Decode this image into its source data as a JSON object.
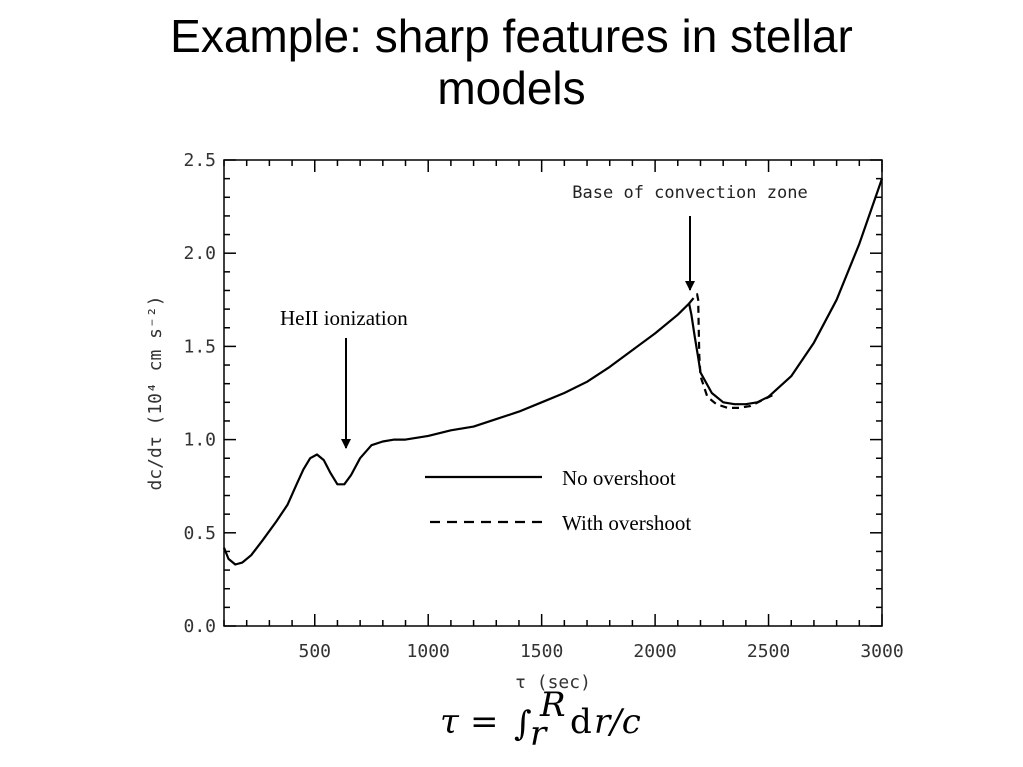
{
  "slide": {
    "title_line1": "Example: sharp features in stellar",
    "title_line2": "models"
  },
  "formula": {
    "tau": "τ",
    "equals": "=",
    "integral": "∫",
    "upper": "R",
    "lower": "r",
    "integrand_d": "d",
    "integrand_rest": "r/c"
  },
  "chart_data": {
    "type": "line",
    "title": "",
    "xlabel": "τ (sec)",
    "ylabel": "dc/dτ (10⁴ cm s⁻²)",
    "xlim": [
      100,
      3000
    ],
    "ylim": [
      0,
      2.5
    ],
    "xticks": [
      500,
      1000,
      1500,
      2000,
      2500,
      3000
    ],
    "xtick_labels": [
      "500",
      "1000",
      "1500",
      "2000",
      "2500",
      "3000"
    ],
    "yticks": [
      0.0,
      0.5,
      1.0,
      1.5,
      2.0,
      2.5
    ],
    "ytick_labels": [
      "0.0",
      "0.5",
      "1.0",
      "1.5",
      "2.0",
      "2.5"
    ],
    "grid": false,
    "legend_position": "center-right",
    "series": [
      {
        "name": "No overshoot",
        "style": "solid",
        "color": "#000000",
        "x": [
          100,
          120,
          150,
          180,
          220,
          270,
          330,
          380,
          420,
          450,
          480,
          510,
          540,
          570,
          600,
          630,
          660,
          700,
          750,
          800,
          850,
          900,
          1000,
          1100,
          1200,
          1300,
          1400,
          1500,
          1600,
          1700,
          1800,
          1900,
          2000,
          2100,
          2150,
          2160,
          2175,
          2190,
          2200,
          2250,
          2300,
          2350,
          2400,
          2450,
          2500,
          2600,
          2700,
          2800,
          2900,
          3000
        ],
        "y": [
          0.42,
          0.36,
          0.33,
          0.34,
          0.38,
          0.46,
          0.56,
          0.65,
          0.76,
          0.84,
          0.9,
          0.92,
          0.89,
          0.82,
          0.76,
          0.76,
          0.81,
          0.9,
          0.97,
          0.99,
          1.0,
          1.0,
          1.02,
          1.05,
          1.07,
          1.11,
          1.15,
          1.2,
          1.25,
          1.31,
          1.39,
          1.48,
          1.57,
          1.67,
          1.73,
          1.67,
          1.55,
          1.44,
          1.36,
          1.25,
          1.2,
          1.19,
          1.19,
          1.2,
          1.23,
          1.34,
          1.52,
          1.75,
          2.05,
          2.4
        ]
      },
      {
        "name": "With overshoot",
        "style": "dashed",
        "color": "#000000",
        "x": [
          2150,
          2170,
          2185,
          2190,
          2192,
          2195,
          2200,
          2230,
          2270,
          2320,
          2370,
          2420,
          2470,
          2520
        ],
        "y": [
          1.73,
          1.76,
          1.78,
          1.75,
          1.6,
          1.45,
          1.34,
          1.23,
          1.19,
          1.17,
          1.17,
          1.18,
          1.21,
          1.24
        ]
      }
    ],
    "annotations": [
      {
        "text": "HeII ionization",
        "arrow_to": [
          640,
          0.95
        ]
      },
      {
        "text": "Base of convection zone",
        "arrow_to": [
          2150,
          1.76
        ]
      }
    ]
  }
}
